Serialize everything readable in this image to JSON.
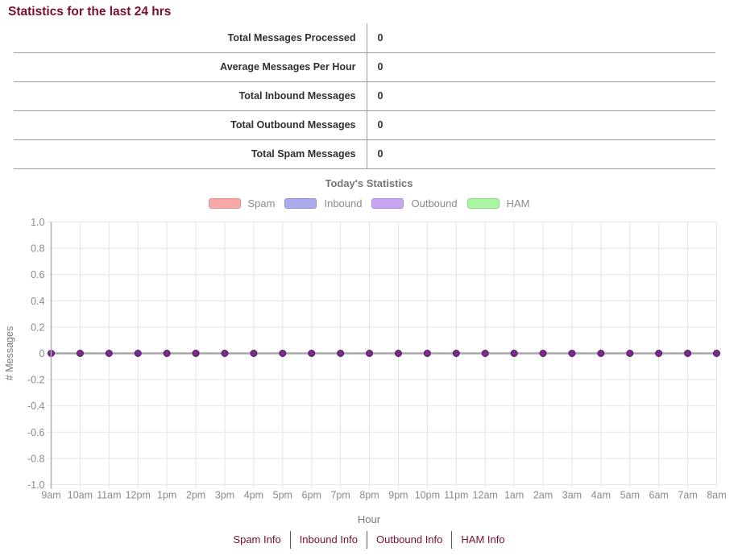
{
  "page": {
    "title": "Statistics for the last 24 hrs"
  },
  "summary_table": {
    "rows": [
      {
        "label": "Total Messages Processed",
        "value": "0"
      },
      {
        "label": "Average Messages Per Hour",
        "value": "0"
      },
      {
        "label": "Total Inbound Messages",
        "value": "0"
      },
      {
        "label": "Total Outbound Messages",
        "value": "0"
      },
      {
        "label": "Total Spam Messages",
        "value": "0"
      }
    ]
  },
  "chart_data": {
    "type": "line",
    "title": "Today's Statistics",
    "xlabel": "Hour",
    "ylabel": "# Messages",
    "categories": [
      "9am",
      "10am",
      "11am",
      "12pm",
      "1pm",
      "2pm",
      "3pm",
      "4pm",
      "5pm",
      "6pm",
      "7pm",
      "8pm",
      "9pm",
      "10pm",
      "11pm",
      "12am",
      "1am",
      "2am",
      "3am",
      "4am",
      "5am",
      "6am",
      "7am",
      "8am"
    ],
    "ylim": [
      -1.0,
      1.0
    ],
    "yticks": [
      "1.0",
      "0.8",
      "0.6",
      "0.4",
      "0.2",
      "0",
      "-0.2",
      "-0.4",
      "-0.6",
      "-0.8",
      "-1.0"
    ],
    "grid": true,
    "legend_position": "top",
    "series": [
      {
        "name": "Spam",
        "swatch_color": "#f9a8a8",
        "swatch_border": "#e38f8f",
        "values": [
          0,
          0,
          0,
          0,
          0,
          0,
          0,
          0,
          0,
          0,
          0,
          0,
          0,
          0,
          0,
          0,
          0,
          0,
          0,
          0,
          0,
          0,
          0,
          0
        ]
      },
      {
        "name": "Inbound",
        "swatch_color": "#aaaaec",
        "swatch_border": "#8f8fd9",
        "values": [
          0,
          0,
          0,
          0,
          0,
          0,
          0,
          0,
          0,
          0,
          0,
          0,
          0,
          0,
          0,
          0,
          0,
          0,
          0,
          0,
          0,
          0,
          0,
          0
        ]
      },
      {
        "name": "Outbound",
        "swatch_color": "#c9a6f2",
        "swatch_border": "#ad89dd",
        "values": [
          0,
          0,
          0,
          0,
          0,
          0,
          0,
          0,
          0,
          0,
          0,
          0,
          0,
          0,
          0,
          0,
          0,
          0,
          0,
          0,
          0,
          0,
          0,
          0
        ]
      },
      {
        "name": "HAM",
        "swatch_color": "#aaf5a2",
        "swatch_border": "#8cd98c",
        "values": [
          0,
          0,
          0,
          0,
          0,
          0,
          0,
          0,
          0,
          0,
          0,
          0,
          0,
          0,
          0,
          0,
          0,
          0,
          0,
          0,
          0,
          0,
          0,
          0
        ]
      }
    ],
    "line_color": "#a8a8a8",
    "point_color": "#7c2b8b",
    "point_border": "#4f165c"
  },
  "footer": {
    "links": [
      "Spam Info",
      "Inbound Info",
      "Outbound Info",
      "HAM Info"
    ]
  },
  "colors": {
    "accent": "#7a0e2d",
    "grid": "#e4e4e4",
    "axis": "#b0b0b0",
    "muted_text": "#8a8a8a"
  }
}
